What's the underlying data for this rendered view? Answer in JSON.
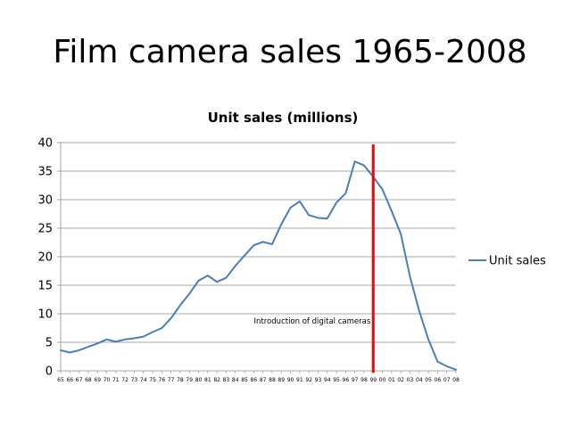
{
  "slide": {
    "title": "Film camera sales 1965-2008"
  },
  "chart_data": {
    "type": "line",
    "title": "Unit sales (millions)",
    "xlabel": "",
    "ylabel": "",
    "categories": [
      "65",
      "66",
      "67",
      "68",
      "69",
      "70",
      "71",
      "72",
      "73",
      "74",
      "75",
      "76",
      "77",
      "78",
      "79",
      "80",
      "81",
      "82",
      "83",
      "84",
      "85",
      "86",
      "87",
      "88",
      "89",
      "90",
      "91",
      "92",
      "93",
      "94",
      "95",
      "96",
      "97",
      "98",
      "99",
      "00",
      "01",
      "02",
      "03",
      "04",
      "05",
      "06",
      "07",
      "08"
    ],
    "series": [
      {
        "name": "Unit sales",
        "color": "#4a7ebb",
        "values": [
          3.6,
          3.2,
          3.6,
          4.2,
          4.8,
          5.5,
          5.1,
          5.5,
          5.7,
          6.0,
          6.8,
          7.5,
          9.2,
          11.5,
          13.5,
          15.8,
          16.7,
          15.6,
          16.3,
          18.4,
          20.2,
          22.0,
          22.6,
          22.2,
          25.7,
          28.6,
          29.7,
          27.3,
          26.8,
          26.7,
          29.5,
          31.1,
          36.7,
          36.0,
          34.0,
          31.8,
          28.0,
          24.0,
          16.5,
          10.5,
          5.5,
          1.6,
          0.8,
          0.2
        ]
      }
    ],
    "ylim": [
      0,
      40
    ],
    "yticks": [
      0,
      5,
      10,
      15,
      20,
      25,
      30,
      35,
      40
    ],
    "grid": true,
    "legend": "right",
    "marker_line": {
      "category": "99",
      "color": "#ff0000",
      "label": "Introduction of digital cameras"
    }
  }
}
